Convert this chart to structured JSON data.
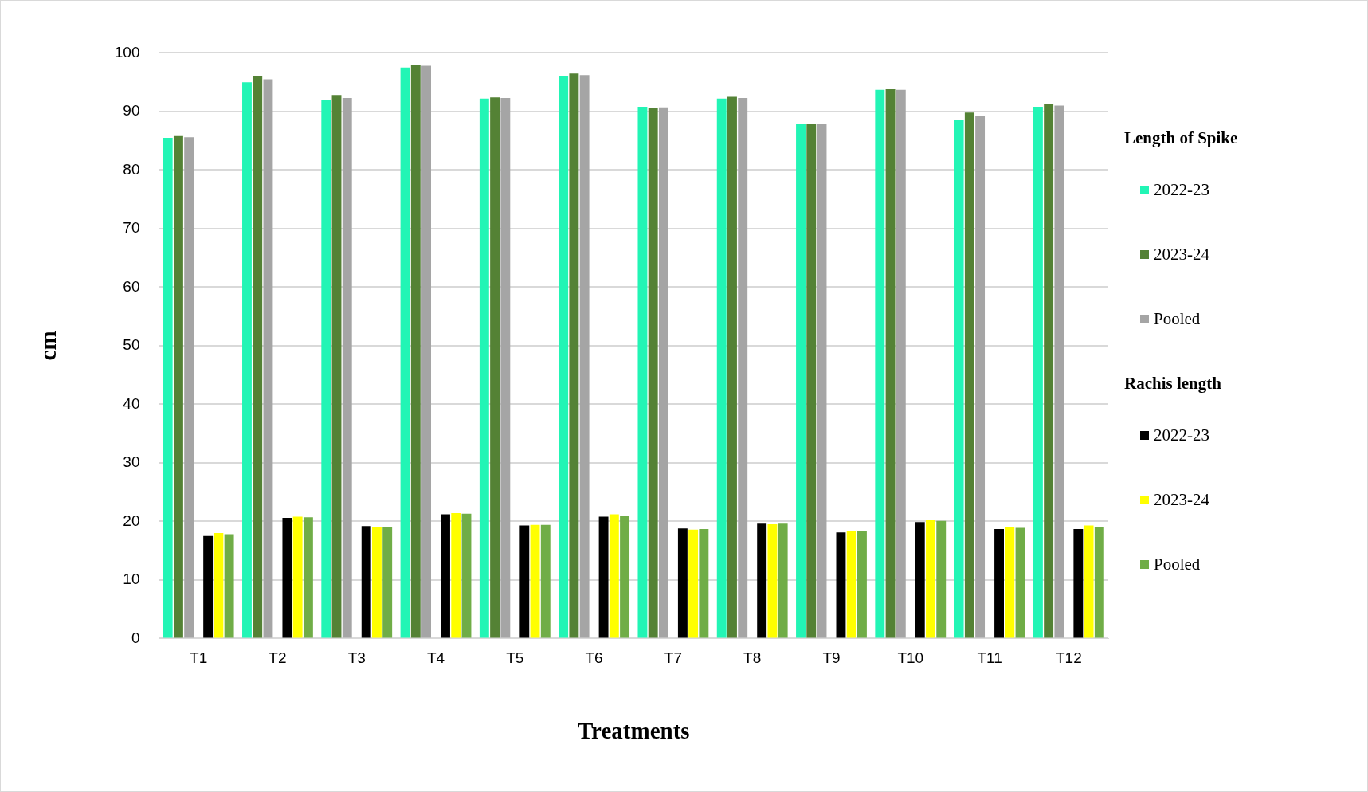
{
  "chart_data": {
    "type": "bar",
    "xlabel": "Treatments",
    "ylabel": "cm",
    "legend_title": [
      "Length of Spike",
      "Rachis length"
    ],
    "categories": [
      "T1",
      "T2",
      "T3",
      "T4",
      "T5",
      "T6",
      "T7",
      "T8",
      "T9",
      "T10",
      "T11",
      "T12"
    ],
    "series": [
      {
        "name": "2022-23",
        "color": "#22f5b5",
        "values": [
          85.5,
          95,
          92,
          97.5,
          92.2,
          96,
          90.8,
          92.2,
          87.8,
          93.7,
          88.5,
          90.8
        ]
      },
      {
        "name": "2023-24",
        "color": "#548235",
        "values": [
          85.8,
          96,
          92.8,
          98,
          92.4,
          96.5,
          90.6,
          92.5,
          87.8,
          93.8,
          89.8,
          91.2
        ]
      },
      {
        "name": "Pooled",
        "color": "#a5a5a5",
        "values": [
          85.6,
          95.5,
          92.3,
          97.8,
          92.3,
          96.2,
          90.7,
          92.3,
          87.8,
          93.7,
          89.2,
          91
        ]
      },
      {
        "name": "2022-23",
        "color": "#000000",
        "values": [
          17.5,
          20.6,
          19.2,
          21.2,
          19.3,
          20.8,
          18.8,
          19.6,
          18.1,
          19.9,
          18.7,
          18.7
        ]
      },
      {
        "name": "2023-24",
        "color": "#ffff00",
        "values": [
          18,
          20.8,
          19,
          21.4,
          19.4,
          21.2,
          18.6,
          19.5,
          18.4,
          20.3,
          19.1,
          19.3
        ]
      },
      {
        "name": "Pooled",
        "color": "#70ad47",
        "values": [
          17.8,
          20.7,
          19.1,
          21.3,
          19.4,
          21,
          18.7,
          19.6,
          18.3,
          20.1,
          18.9,
          19
        ]
      }
    ],
    "ylim": [
      0,
      100
    ],
    "yticks": [
      0,
      10,
      20,
      30,
      40,
      50,
      60,
      70,
      80,
      90,
      100
    ],
    "grid": "y",
    "legend": "right"
  }
}
